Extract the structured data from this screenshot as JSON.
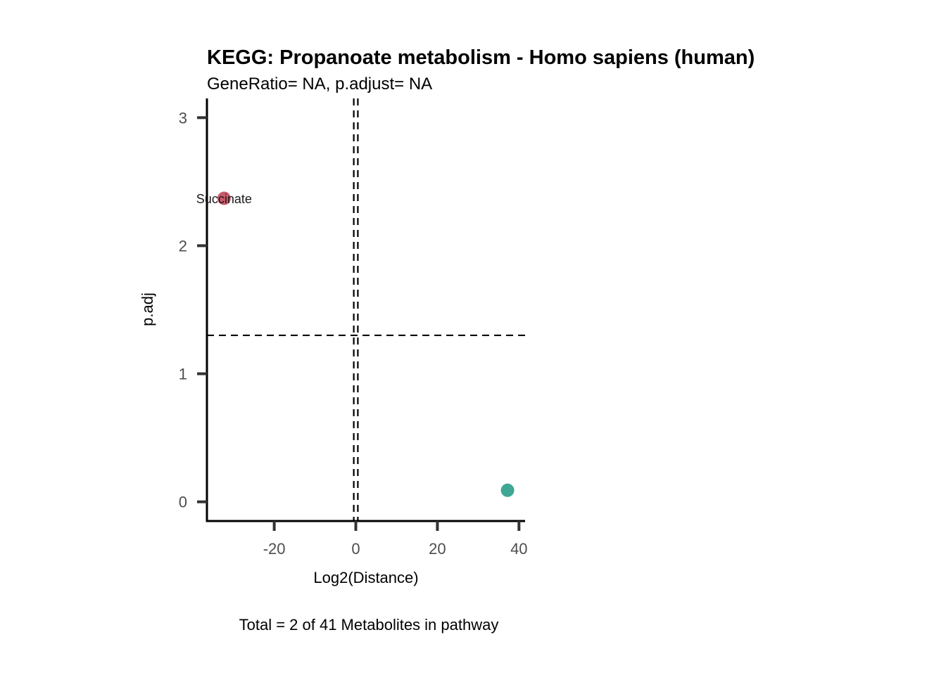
{
  "chart_data": {
    "type": "scatter",
    "title": "KEGG: Propanoate metabolism - Homo sapiens (human)",
    "subtitle": "GeneRatio= NA, p.adjust= NA",
    "xlabel": "Log2(Distance)",
    "ylabel": "p.adj",
    "caption": "Total = 2 of 41 Metabolites in pathway",
    "xlim": [
      -36.5,
      41.5
    ],
    "ylim": [
      -0.15,
      3.15
    ],
    "xticks": [
      -20,
      0,
      20,
      40
    ],
    "xtick_labels": [
      "-20",
      "0",
      "20",
      "40"
    ],
    "yticks": [
      0,
      1,
      2,
      3
    ],
    "ytick_labels": [
      "0",
      "1",
      "2",
      "3"
    ],
    "grid": false,
    "legend": "none",
    "reference_lines": {
      "horizontal": [
        1.3
      ],
      "vertical": [
        -0.5,
        0.5
      ]
    },
    "points": [
      {
        "x": -32.3,
        "y": 2.37,
        "label": "Succinate",
        "color": "#c95a6a"
      },
      {
        "x": 37.2,
        "y": 0.09,
        "label": "",
        "color": "#3fa796"
      }
    ]
  }
}
